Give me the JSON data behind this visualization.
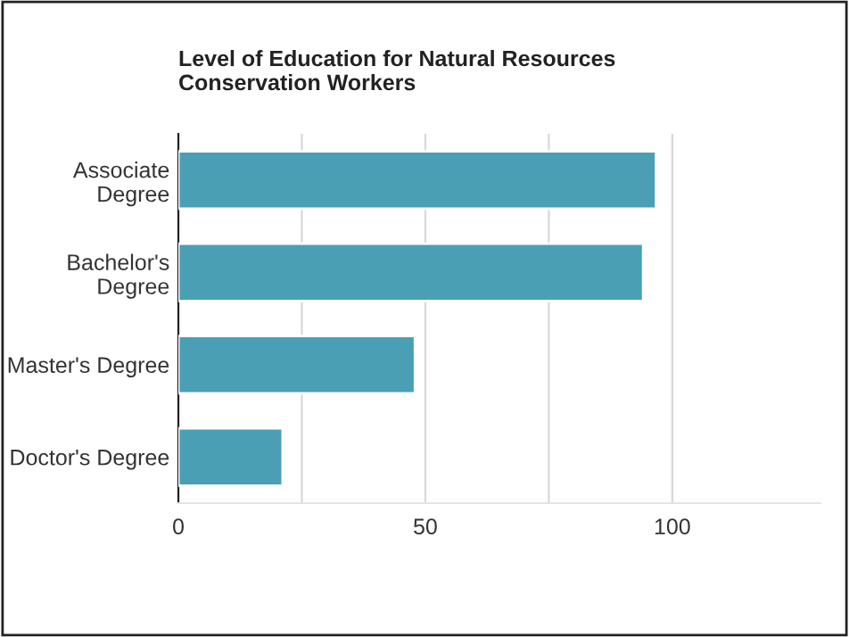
{
  "chart_data": {
    "type": "bar",
    "orientation": "horizontal",
    "title": "Level of Education for Natural Resources\nConservation Workers",
    "categories": [
      "Associate\nDegree",
      "Bachelor's\nDegree",
      "Master's Degree",
      "Doctor's Degree"
    ],
    "values": [
      96.7,
      94.1,
      47.9,
      21.1
    ],
    "color": "#4a9fb5",
    "xlim": [
      0,
      130
    ],
    "xticks": [
      0,
      {
        "value": 25,
        "label": null
      },
      50,
      {
        "value": 75,
        "label": null
      },
      100
    ],
    "grid": "x"
  }
}
